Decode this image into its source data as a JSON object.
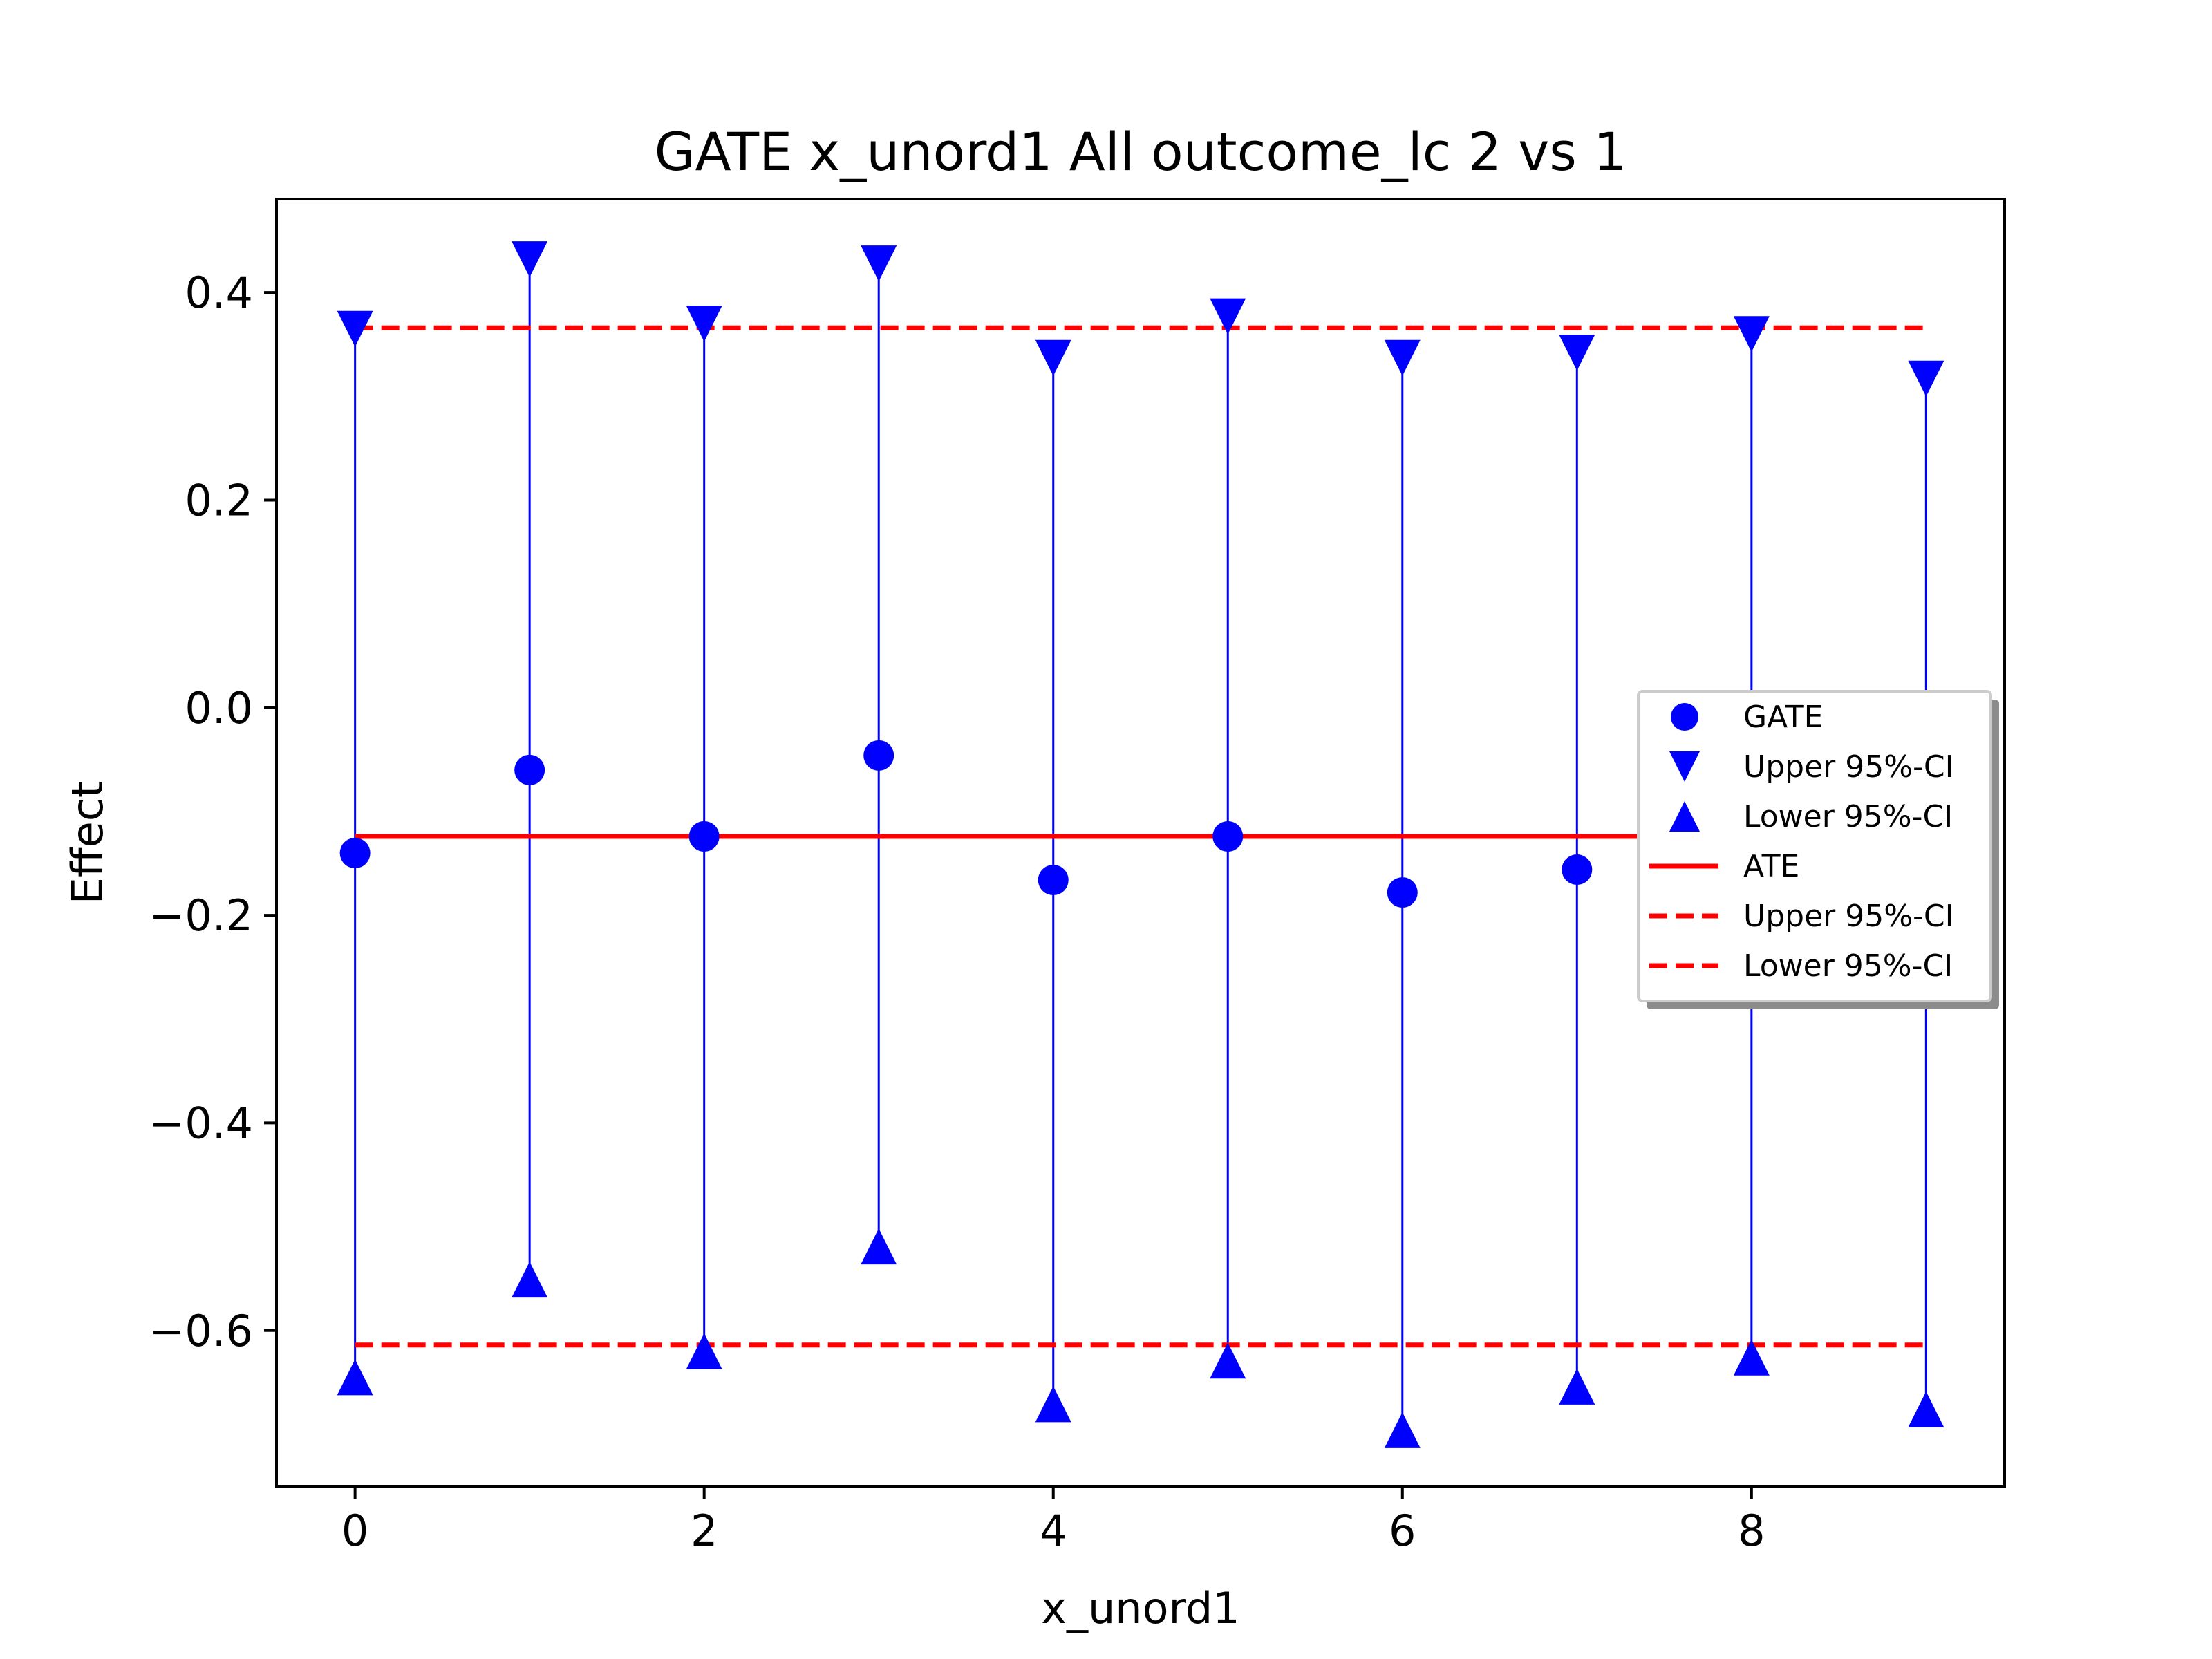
{
  "chart_data": {
    "type": "scatter",
    "title": "GATE x_unord1 All outcome_lc  2 vs 1",
    "xlabel": "x_unord1",
    "ylabel": "Effect",
    "xlim": [
      -0.45,
      9.45
    ],
    "ylim": [
      -0.75,
      0.49
    ],
    "xticks": [
      0,
      2,
      4,
      6,
      8
    ],
    "xtick_labels": [
      "0",
      "2",
      "4",
      "6",
      "8"
    ],
    "yticks": [
      0.4,
      0.2,
      0.0,
      -0.2,
      -0.4,
      -0.6
    ],
    "ytick_labels": [
      "0.4",
      "0.2",
      "0.0",
      "−0.2",
      "−0.4",
      "−0.6"
    ],
    "grid": false,
    "legend_position": "center-right",
    "x": [
      0,
      1,
      2,
      3,
      4,
      5,
      6,
      7,
      8,
      9
    ],
    "series": [
      {
        "name": "GATE",
        "marker": "circle",
        "color": "#0000ff",
        "values": [
          -0.14,
          -0.06,
          -0.124,
          -0.046,
          -0.166,
          -0.124,
          -0.178,
          -0.156,
          -0.124,
          -0.124
        ]
      },
      {
        "name": "Upper 95%-CI",
        "marker": "triangle-down",
        "color": "#0000ff",
        "values": [
          0.365,
          0.432,
          0.37,
          0.428,
          0.337,
          0.377,
          0.337,
          0.342,
          0.36,
          0.317
        ]
      },
      {
        "name": "Lower 95%-CI",
        "marker": "triangle-up",
        "color": "#0000ff",
        "values": [
          -0.645,
          -0.551,
          -0.62,
          -0.519,
          -0.671,
          -0.629,
          -0.696,
          -0.654,
          -0.626,
          -0.676
        ]
      }
    ],
    "reference_lines": [
      {
        "name": "ATE",
        "value": -0.124,
        "style": "solid",
        "color": "#ff0000"
      },
      {
        "name": "Upper 95%-CI",
        "value": 0.366,
        "style": "dashed",
        "color": "#ff0000"
      },
      {
        "name": "Lower 95%-CI",
        "value": -0.614,
        "style": "dashed",
        "color": "#ff0000"
      }
    ]
  }
}
